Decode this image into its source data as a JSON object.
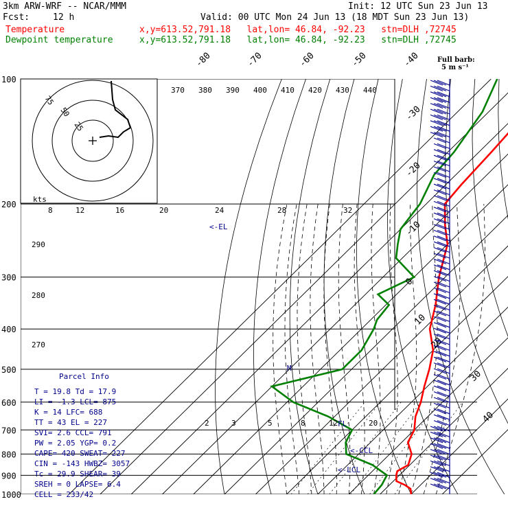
{
  "header": {
    "model": "3km ARW-WRF -- NCAR/MMM",
    "init": "Init: 12 UTC Sun 23 Jun 13",
    "fcst_label": "Fcst:",
    "fcst_value": "12 h",
    "valid": "Valid: 00 UTC Mon 24 Jun 13 (18 MDT Sun 23 Jun 13)",
    "temp_label": "Temperature",
    "temp_info": "x,y=613.52,791.18   lat,lon= 46.84, -92.23   stn=DLH ,72745",
    "dew_label": "Dewpoint temperature",
    "dew_info": "x,y=613.52,791.18   lat,lon= 46.84, -92.23   stn=DLH ,72745",
    "barb_legend": "Full barb:",
    "barb_units": "5 m s⁻¹"
  },
  "colors": {
    "temperature": "#ff0000",
    "dewpoint": "#008000",
    "parcel": "#00008b",
    "barbs": "#00008b"
  },
  "chart_data": {
    "type": "skew-t",
    "pressure_levels": [
      100,
      200,
      300,
      400,
      500,
      600,
      700,
      800,
      900,
      1000
    ],
    "temp_labels": [
      "-80",
      "-70",
      "-60",
      "-50",
      "-40",
      "-30",
      "-20",
      "-10",
      "0",
      "10",
      "20",
      "30",
      "40"
    ],
    "theta_labels": [
      "370",
      "380",
      "390",
      "400",
      "410",
      "420",
      "430",
      "440"
    ],
    "mixing_labels_top": [
      "8",
      "12",
      "16",
      "20",
      "24",
      "28",
      "32"
    ],
    "mixing_labels_low": [
      "2",
      "3",
      "5",
      "8",
      "12",
      "20"
    ],
    "theta_left_labels": [
      "290",
      "280",
      "270"
    ],
    "hodograph": {
      "units": "kts",
      "rings": [
        "75",
        "50",
        "25"
      ]
    },
    "markers": [
      {
        "label": "<-EL",
        "p": 240
      },
      {
        "label": "M",
        "p": 500
      },
      {
        "label": "<-CCL",
        "p": 790
      },
      {
        "label": "<-LCL",
        "p": 875
      },
      {
        "label": "FL",
        "p": 700
      }
    ],
    "temperature": [
      [
        1000,
        30
      ],
      [
        970,
        28
      ],
      [
        950,
        25
      ],
      [
        930,
        21
      ],
      [
        900,
        19
      ],
      [
        880,
        18
      ],
      [
        850,
        19.5
      ],
      [
        800,
        17
      ],
      [
        750,
        12
      ],
      [
        700,
        10
      ],
      [
        650,
        6
      ],
      [
        600,
        3
      ],
      [
        550,
        -1
      ],
      [
        500,
        -5
      ],
      [
        450,
        -10
      ],
      [
        400,
        -18
      ],
      [
        350,
        -24
      ],
      [
        300,
        -32
      ],
      [
        250,
        -40
      ],
      [
        225,
        -47
      ],
      [
        200,
        -54
      ],
      [
        180,
        -55
      ],
      [
        150,
        -56
      ],
      [
        130,
        -57
      ],
      [
        100,
        -60
      ]
    ],
    "dewpoint": [
      [
        1000,
        18
      ],
      [
        950,
        17.5
      ],
      [
        900,
        16
      ],
      [
        850,
        8
      ],
      [
        800,
        -4
      ],
      [
        750,
        -8
      ],
      [
        700,
        -10
      ],
      [
        650,
        -22
      ],
      [
        600,
        -38
      ],
      [
        550,
        -50
      ],
      [
        500,
        -33
      ],
      [
        450,
        -33
      ],
      [
        400,
        -36
      ],
      [
        380,
        -38
      ],
      [
        350,
        -39
      ],
      [
        330,
        -46
      ],
      [
        300,
        -40
      ],
      [
        270,
        -52
      ],
      [
        250,
        -56
      ],
      [
        230,
        -60
      ],
      [
        200,
        -62
      ],
      [
        170,
        -67
      ],
      [
        150,
        -68
      ],
      [
        120,
        -72
      ],
      [
        100,
        -78
      ]
    ],
    "parcel_info": {
      "title": "Parcel Info",
      "rows": [
        "T  =   19.8 Td =  17.9",
        "LI =   -1.3 LCL=   875",
        "K  =     14 LFC=   688",
        "TT =     43 EL =   227",
        "SVI=    2.6 CCL=   791",
        "PW =   2.05 YGP=   0.2",
        "CAPE=   420 SWEAT=  227",
        "CIN =  -143 HWBZ= 3057",
        "Tc  =  29.9 SHEAR=  39",
        "SREH =    0 LAPSE= 6.4",
        "CELL = 233/42"
      ]
    }
  }
}
